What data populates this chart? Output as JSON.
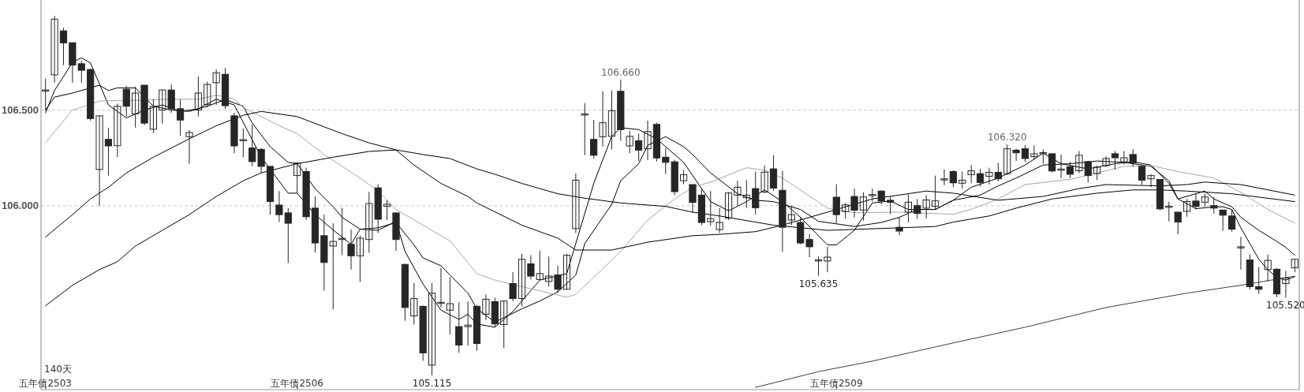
{
  "chart_data": {
    "type": "candlestick",
    "ylim": [
      105.04,
      107.075
    ],
    "grid": "y",
    "categories": [
      "五年债2503",
      null,
      null,
      null,
      null,
      null,
      null,
      null,
      null,
      null,
      null,
      null,
      null,
      null,
      null,
      null,
      null,
      null,
      null,
      null,
      null,
      null,
      null,
      null,
      null,
      null,
      null,
      null,
      "五年债2506",
      null,
      null,
      null,
      null,
      null,
      null,
      null,
      null,
      null,
      null,
      null,
      null,
      null,
      null,
      null,
      null,
      null,
      null,
      null,
      null,
      null,
      null,
      null,
      null,
      null,
      null,
      null,
      null,
      null,
      null,
      null,
      null,
      null,
      null,
      null,
      null,
      null,
      null,
      null,
      null,
      null,
      null,
      null,
      null,
      null,
      null,
      null,
      null,
      null,
      null,
      null,
      null,
      null,
      null,
      null,
      null,
      null,
      null,
      null,
      "五年债2509",
      null,
      null,
      null,
      null,
      null,
      null,
      null,
      null,
      null,
      null,
      null,
      null,
      null,
      null,
      null,
      null,
      null,
      null,
      null,
      null,
      null,
      null,
      null,
      null,
      null,
      null,
      null,
      null,
      null,
      null,
      null,
      null,
      null,
      null,
      null,
      null,
      null,
      null,
      null,
      null,
      null,
      null,
      null,
      null,
      null,
      null,
      null,
      null,
      null,
      null,
      null
    ],
    "yticks": [
      {
        "value": 106,
        "label": "106.000"
      },
      {
        "value": 106.5,
        "label": "106.500"
      }
    ],
    "annotations": [
      "140天",
      {
        "text": "106.660",
        "y": 106.66
      },
      {
        "text": "105.115",
        "y": 105.115
      },
      {
        "text": "105.635",
        "y": 105.635
      },
      {
        "text": "106.320",
        "y": 106.32
      },
      {
        "text": "105.520",
        "y": 105.52
      }
    ],
    "series": [
      {
        "color": "#262626",
        "ohlc": [
          [
            106.602,
            106.664,
            106.5,
            106.602
          ],
          [
            106.684,
            106.992,
            106.643,
            106.975
          ],
          [
            106.914,
            106.93,
            106.735,
            106.851
          ],
          [
            106.852,
            106.852,
            106.643,
            106.735
          ],
          [
            106.742,
            106.757,
            106.643,
            106.708
          ],
          [
            106.712,
            106.716,
            106.445,
            106.456
          ],
          [
            106.19,
            106.47,
            106.0,
            106.47
          ],
          [
            106.347,
            106.408,
            106.158,
            106.313
          ],
          [
            106.314,
            106.534,
            106.254,
            106.52
          ],
          [
            106.609,
            106.626,
            106.466,
            106.52
          ],
          [
            106.48,
            106.623,
            106.408,
            106.589
          ],
          [
            106.63,
            106.63,
            106.421,
            106.432
          ],
          [
            106.4,
            106.557,
            106.38,
            106.52
          ],
          [
            106.5,
            106.605,
            106.429,
            106.605
          ],
          [
            106.605,
            106.634,
            106.486,
            106.507
          ],
          [
            106.507,
            106.557,
            106.366,
            106.448
          ],
          [
            106.361,
            106.396,
            106.22,
            106.383
          ],
          [
            106.5,
            106.675,
            106.466,
            106.589
          ],
          [
            106.53,
            106.648,
            106.514,
            106.634
          ],
          [
            106.643,
            106.712,
            106.527,
            106.695
          ],
          [
            106.687,
            106.721,
            106.507,
            106.523
          ],
          [
            106.47,
            106.486,
            106.275,
            106.313
          ],
          [
            106.343,
            106.404,
            106.254,
            106.343
          ],
          [
            106.302,
            106.425,
            106.206,
            106.231
          ],
          [
            106.295,
            106.302,
            106.172,
            106.206
          ],
          [
            106.206,
            106.206,
            105.954,
            106.022
          ],
          [
            106.004,
            106.077,
            105.915,
            105.954
          ],
          [
            105.963,
            105.988,
            105.701,
            105.909
          ],
          [
            106.158,
            106.224,
            106.066,
            106.224
          ],
          [
            106.179,
            106.199,
            105.926,
            105.943
          ],
          [
            105.988,
            106.049,
            105.755,
            105.806
          ],
          [
            105.844,
            105.954,
            105.557,
            105.704
          ],
          [
            105.79,
            105.909,
            105.459,
            105.814
          ],
          [
            105.827,
            105.99,
            105.742,
            105.827
          ],
          [
            105.799,
            105.876,
            105.667,
            105.739
          ],
          [
            105.739,
            105.844,
            105.602,
            105.831
          ],
          [
            105.824,
            106.072,
            105.755,
            106.012
          ],
          [
            106.094,
            106.113,
            105.858,
            105.93
          ],
          [
            105.997,
            106.029,
            105.926,
            106.008
          ],
          [
            105.963,
            105.963,
            105.765,
            105.824
          ],
          [
            105.694,
            105.697,
            105.4,
            105.469
          ],
          [
            105.425,
            105.596,
            105.38,
            105.516
          ],
          [
            105.475,
            105.48,
            105.191,
            105.232
          ],
          [
            105.168,
            105.596,
            105.115,
            105.544
          ],
          [
            105.493,
            105.676,
            105.469,
            105.493
          ],
          [
            105.455,
            105.628,
            105.328,
            105.489
          ],
          [
            105.369,
            105.496,
            105.232,
            105.273
          ],
          [
            105.369,
            105.5,
            105.27,
            105.377
          ],
          [
            105.475,
            105.482,
            105.243,
            105.281
          ],
          [
            105.434,
            105.537,
            105.404,
            105.512
          ],
          [
            105.5,
            105.52,
            105.366,
            105.383
          ],
          [
            105.38,
            105.503,
            105.257,
            105.503
          ],
          [
            105.594,
            105.653,
            105.503,
            105.516
          ],
          [
            105.516,
            105.749,
            105.475,
            105.721
          ],
          [
            105.697,
            105.742,
            105.615,
            105.633
          ],
          [
            105.615,
            105.766,
            105.615,
            105.646
          ],
          [
            105.605,
            105.735,
            105.578,
            105.633
          ],
          [
            105.639,
            105.687,
            105.544,
            105.564
          ],
          [
            105.564,
            105.749,
            105.564,
            105.742
          ],
          [
            105.881,
            106.169,
            105.858,
            106.134
          ],
          [
            106.477,
            106.537,
            106.264,
            106.477
          ],
          [
            106.347,
            106.449,
            106.247,
            106.264
          ],
          [
            106.361,
            106.598,
            106.309,
            106.434
          ],
          [
            106.363,
            106.602,
            106.295,
            106.497
          ],
          [
            106.598,
            106.66,
            106.34,
            106.398
          ],
          [
            106.313,
            106.391,
            106.275,
            106.363
          ],
          [
            106.34,
            106.377,
            106.234,
            106.291
          ],
          [
            106.298,
            106.445,
            106.238,
            106.388
          ],
          [
            106.425,
            106.434,
            106.231,
            106.25
          ],
          [
            106.254,
            106.302,
            106.165,
            106.227
          ],
          [
            106.23,
            106.24,
            106.056,
            106.074
          ],
          [
            106.131,
            106.186,
            106.113,
            106.163
          ],
          [
            106.111,
            106.111,
            105.963,
            106.018
          ],
          [
            106.056,
            106.09,
            105.899,
            105.913
          ],
          [
            105.917,
            106.077,
            105.896,
            105.933
          ],
          [
            105.876,
            105.988,
            105.858,
            105.913
          ],
          [
            105.936,
            106.072,
            105.926,
            106.067
          ],
          [
            106.056,
            106.131,
            106.001,
            106.097
          ],
          [
            106.042,
            106.134,
            105.988,
            106.056
          ],
          [
            106.09,
            106.179,
            105.954,
            105.99
          ],
          [
            106.072,
            106.21,
            106.066,
            106.176
          ],
          [
            106.193,
            106.265,
            106.079,
            106.093
          ],
          [
            106.081,
            106.183,
            105.76,
            105.888
          ],
          [
            105.926,
            106.001,
            105.899,
            105.954
          ],
          [
            105.913,
            105.943,
            105.799,
            105.806
          ],
          [
            105.824,
            105.854,
            105.731,
            105.786
          ],
          [
            105.715,
            105.735,
            105.635,
            105.715
          ],
          [
            105.712,
            105.786,
            105.653,
            105.732
          ],
          [
            106.045,
            106.113,
            105.91,
            105.954
          ],
          [
            105.97,
            106.015,
            105.933,
            106.005
          ],
          [
            106.049,
            106.09,
            105.94,
            105.977
          ],
          [
            105.978,
            106.07,
            105.922,
            106.046
          ],
          [
            106.056,
            106.09,
            106.022,
            106.056
          ],
          [
            106.077,
            106.081,
            106.008,
            106.025
          ],
          [
            106.029,
            106.049,
            105.956,
            106.018
          ],
          [
            105.888,
            105.943,
            105.847,
            105.868
          ],
          [
            105.967,
            106.06,
            105.913,
            106.019
          ],
          [
            106.001,
            106.036,
            105.933,
            105.96
          ],
          [
            105.988,
            106.056,
            105.933,
            106.031
          ],
          [
            105.997,
            106.158,
            105.981,
            106.026
          ],
          [
            106.138,
            106.19,
            106.107,
            106.138
          ],
          [
            106.179,
            106.186,
            106.097,
            106.12
          ],
          [
            106.118,
            106.179,
            106.09,
            106.134
          ],
          [
            106.163,
            106.213,
            106.118,
            106.183
          ],
          [
            106.168,
            106.193,
            106.101,
            106.122
          ],
          [
            106.154,
            106.199,
            106.111,
            106.175
          ],
          [
            106.175,
            106.224,
            106.128,
            106.141
          ],
          [
            106.168,
            106.32,
            106.161,
            106.298
          ],
          [
            106.291,
            106.298,
            106.234,
            106.277
          ],
          [
            106.298,
            106.316,
            106.23,
            106.247
          ],
          [
            106.257,
            106.316,
            106.24,
            106.272
          ],
          [
            106.275,
            106.295,
            106.22,
            106.275
          ],
          [
            106.272,
            106.272,
            106.175,
            106.182
          ],
          [
            106.189,
            106.268,
            106.145,
            106.189
          ],
          [
            106.204,
            106.23,
            106.145,
            106.165
          ],
          [
            106.183,
            106.286,
            106.172,
            106.264
          ],
          [
            106.231,
            106.234,
            106.122,
            106.158
          ],
          [
            106.168,
            106.21,
            106.135,
            106.202
          ],
          [
            106.21,
            106.258,
            106.202,
            106.247
          ],
          [
            106.272,
            106.286,
            106.189,
            106.251
          ],
          [
            106.23,
            106.286,
            106.216,
            106.251
          ],
          [
            106.268,
            106.295,
            106.204,
            106.224
          ],
          [
            106.206,
            106.209,
            106.111,
            106.134
          ],
          [
            106.141,
            106.165,
            106.097,
            106.158
          ],
          [
            106.138,
            106.138,
            105.977,
            105.984
          ],
          [
            105.995,
            106.022,
            105.919,
            105.995
          ],
          [
            105.967,
            105.967,
            105.851,
            105.915
          ],
          [
            105.971,
            106.036,
            105.943,
            106.022
          ],
          [
            106.025,
            106.066,
            105.981,
            105.997
          ],
          [
            106.019,
            106.063,
            105.995,
            106.046
          ],
          [
            106.001,
            106.046,
            105.96,
            105.988
          ],
          [
            105.978,
            105.978,
            105.869,
            105.951
          ],
          [
            105.947,
            105.981,
            105.865,
            105.878
          ],
          [
            105.783,
            105.837,
            105.667,
            105.783
          ],
          [
            105.717,
            105.746,
            105.564,
            105.578
          ],
          [
            105.578,
            105.68,
            105.54,
            105.564
          ],
          [
            105.667,
            105.746,
            105.605,
            105.715
          ],
          [
            105.669,
            105.674,
            105.523,
            105.54
          ],
          [
            105.594,
            105.66,
            105.52,
            105.623
          ],
          [
            105.676,
            105.721,
            105.653,
            105.721
          ]
        ]
      },
      {
        "type": "line",
        "color": "#000000",
        "values": [
          106.486,
          106.602,
          null,
          106.749,
          106.773,
          106.746,
          null,
          106.527,
          null,
          106.459,
          null,
          106.5,
          null,
          106.527,
          null,
          106.493,
          null,
          106.507,
          null,
          106.557,
          null,
          106.527,
          null,
          null,
          106.254,
          null,
          null,
          106.066,
          106.066,
          null,
          105.954,
          null,
          105.874,
          null,
          105.799,
          105.878,
          null,
          105.872,
          null,
          105.919,
          105.762,
          null,
          105.592,
          null,
          105.455,
          null,
          105.407,
          105.434,
          105.383,
          null,
          105.366,
          null,
          105.448,
          null,
          null,
          105.612,
          null,
          null,
          105.646,
          null,
          null,
          106.117,
          null,
          106.363,
          106.408,
          null,
          106.398,
          null,
          106.35,
          null,
          null,
          106.227,
          null,
          null,
          106.022,
          null,
          105.974,
          null,
          106.022,
          null,
          106.083,
          null,
          106.022,
          null,
          105.94,
          null,
          105.844,
          105.796,
          105.796,
          null,
          105.872,
          null,
          106.015,
          null,
          106.025,
          null,
          105.981,
          null,
          null,
          105.981,
          null,
          106.029,
          null,
          106.097,
          null,
          null,
          106.145,
          null,
          null,
          106.213,
          null,
          106.275,
          null,
          106.22,
          null,
          null,
          106.193,
          null,
          null,
          106.22,
          null,
          106.23,
          null,
          106.213,
          null,
          106.117,
          106.036,
          null,
          105.985,
          null,
          105.995,
          105.995,
          105.981,
          105.885,
          null,
          105.721,
          105.667,
          105.626,
          105.612,
          105.63
        ]
      },
      {
        "type": "line",
        "color": "#000000",
        "values": [
          106.5,
          106.568,
          null,
          106.589,
          null,
          106.616,
          106.63,
          106.602,
          106.616,
          null,
          106.616,
          null,
          106.52,
          null,
          106.5,
          null,
          106.493,
          null,
          106.52,
          null,
          106.555,
          null,
          106.52,
          106.432,
          null,
          106.309,
          null,
          106.227,
          106.22,
          null,
          106.09,
          null,
          105.995,
          105.94,
          null,
          105.878,
          null,
          105.885,
          null,
          105.913,
          null,
          105.796,
          105.728,
          null,
          105.687,
          105.639,
          null,
          105.544,
          105.462,
          null,
          105.393,
          null,
          null,
          105.462,
          null,
          105.503,
          null,
          105.551,
          null,
          105.639,
          105.803,
          null,
          null,
          106.008,
          106.131,
          null,
          106.22,
          106.316,
          null,
          106.361,
          null,
          106.309,
          106.268,
          null,
          106.172,
          null,
          null,
          106.063,
          null,
          106.029,
          null,
          106.022,
          null,
          null,
          105.981,
          null,
          105.919,
          null,
          105.906,
          null,
          105.892,
          null,
          null,
          105.913,
          null,
          105.94,
          null,
          105.981,
          null,
          105.981,
          null,
          106.029,
          null,
          null,
          106.056,
          null,
          106.104,
          null,
          106.145,
          null,
          null,
          106.213,
          null,
          null,
          106.22,
          null,
          null,
          106.234,
          null,
          null,
          106.227,
          null,
          null,
          106.206,
          null,
          106.131,
          106.036,
          null,
          null,
          106.077,
          106.036,
          null,
          105.995,
          105.94,
          null,
          105.872,
          105.844,
          null,
          105.783,
          105.742
        ]
      },
      {
        "type": "line",
        "color": "#a6a6a6",
        "values": [
          106.329,
          null,
          null,
          106.5,
          null,
          106.53,
          106.548,
          null,
          null,
          null,
          106.551,
          null,
          null,
          null,
          106.557,
          null,
          null,
          106.557,
          null,
          106.578,
          null,
          106.557,
          106.514,
          null,
          null,
          null,
          106.418,
          null,
          106.377,
          null,
          null,
          106.268,
          null,
          null,
          null,
          106.145,
          null,
          106.077,
          null,
          105.981,
          null,
          null,
          105.899,
          null,
          null,
          105.817,
          null,
          null,
          105.646,
          null,
          105.612,
          null,
          null,
          105.578,
          null,
          null,
          null,
          null,
          105.523,
          105.537,
          null,
          105.626,
          null,
          null,
          105.762,
          null,
          null,
          105.926,
          null,
          null,
          106.036,
          null,
          106.097,
          null,
          106.124,
          null,
          null,
          null,
          106.199,
          null,
          106.186,
          null,
          106.145,
          null,
          null,
          null,
          null,
          105.988,
          null,
          null,
          105.964,
          null,
          null,
          null,
          null,
          105.967,
          null,
          null,
          null,
          null,
          null,
          105.956,
          null,
          105.981,
          null,
          null,
          106.036,
          null,
          null,
          106.111,
          null,
          null,
          null,
          null,
          106.138,
          null,
          null,
          106.172,
          null,
          null,
          106.206,
          null,
          null,
          106.21,
          null,
          null,
          106.179,
          null,
          null,
          null,
          106.145,
          null,
          null,
          106.07,
          null,
          null,
          105.981,
          null,
          null,
          105.91
        ]
      },
      {
        "type": "line",
        "color": "#000000",
        "values": [
          105.837,
          null,
          null,
          105.954,
          null,
          106.036,
          null,
          106.097,
          null,
          106.172,
          null,
          null,
          106.254,
          null,
          null,
          null,
          106.35,
          null,
          null,
          106.418,
          null,
          null,
          106.473,
          null,
          106.493,
          null,
          null,
          null,
          106.466,
          null,
          null,
          null,
          null,
          106.377,
          null,
          null,
          106.329,
          null,
          null,
          106.292,
          null,
          null,
          106.268,
          null,
          null,
          106.247,
          null,
          null,
          106.193,
          null,
          106.165,
          null,
          null,
          106.117,
          null,
          null,
          null,
          106.063,
          null,
          null,
          106.04,
          null,
          null,
          null,
          106.015,
          null,
          null,
          null,
          null,
          105.997,
          null,
          null,
          105.967,
          null,
          null,
          105.947,
          null,
          null,
          null,
          null,
          null,
          105.899,
          null,
          null,
          null,
          null,
          null,
          105.872,
          null,
          null,
          null,
          null,
          null,
          null,
          null,
          105.885,
          null,
          null,
          null,
          105.892,
          null,
          105.915,
          null,
          null,
          null,
          105.947,
          null,
          null,
          105.988,
          null,
          null,
          null,
          106.036,
          null,
          null,
          null,
          null,
          106.066,
          null,
          null,
          null,
          106.083,
          null,
          null,
          106.083,
          null,
          null,
          106.077,
          null,
          null,
          null,
          null,
          106.063,
          null,
          null,
          null,
          null,
          null,
          null,
          106.022
        ]
      },
      {
        "type": "line",
        "color": "#000000",
        "values": [
          105.478,
          null,
          null,
          105.585,
          null,
          null,
          105.667,
          null,
          105.708,
          null,
          105.79,
          null,
          null,
          105.872,
          null,
          null,
          105.954,
          null,
          null,
          106.049,
          null,
          null,
          106.131,
          null,
          106.172,
          null,
          null,
          null,
          106.22,
          null,
          null,
          null,
          106.254,
          null,
          null,
          null,
          106.284,
          null,
          null,
          106.292,
          null,
          106.213,
          null,
          null,
          106.117,
          null,
          null,
          106.049,
          106.015,
          null,
          null,
          null,
          null,
          105.899,
          null,
          null,
          null,
          105.831,
          null,
          105.769,
          null,
          null,
          null,
          105.769,
          null,
          null,
          null,
          105.81,
          null,
          null,
          null,
          null,
          105.844,
          null,
          null,
          105.851,
          null,
          null,
          null,
          105.865,
          null,
          null,
          105.899,
          null,
          null,
          null,
          null,
          105.967,
          null,
          null,
          null,
          null,
          106.036,
          null,
          null,
          null,
          null,
          null,
          106.077,
          null,
          null,
          106.066,
          null,
          null,
          null,
          null,
          106.029,
          null,
          null,
          null,
          null,
          106.049,
          null,
          null,
          null,
          106.09,
          null,
          null,
          106.111,
          null,
          null,
          null,
          null,
          null,
          106.104,
          null,
          null,
          106.111,
          null,
          106.124,
          null,
          null,
          null,
          106.111,
          null,
          null,
          null,
          null,
          null,
          106.056
        ]
      },
      {
        "type": "line",
        "color": "#404040",
        "values": [
          null,
          null,
          null,
          null,
          null,
          null,
          null,
          null,
          null,
          null,
          null,
          null,
          null,
          null,
          null,
          null,
          null,
          null,
          null,
          null,
          null,
          null,
          null,
          null,
          null,
          null,
          null,
          null,
          null,
          null,
          null,
          null,
          null,
          null,
          null,
          null,
          null,
          null,
          null,
          null,
          null,
          null,
          null,
          null,
          null,
          null,
          null,
          null,
          null,
          null,
          null,
          null,
          null,
          null,
          null,
          null,
          null,
          null,
          null,
          null,
          null,
          null,
          null,
          null,
          null,
          null,
          null,
          null,
          null,
          null,
          null,
          null,
          null,
          null,
          null,
          null,
          null,
          null,
          null,
          105.052,
          null,
          null,
          null,
          null,
          null,
          null,
          105.134,
          null,
          null,
          null,
          null,
          null,
          105.189,
          null,
          null,
          null,
          null,
          null,
          null,
          null,
          null,
          105.284,
          null,
          null,
          null,
          null,
          null,
          null,
          null,
          105.366,
          null,
          null,
          null,
          null,
          null,
          null,
          null,
          null,
          105.469,
          null,
          null,
          null,
          null,
          null,
          null,
          null,
          null,
          105.544,
          null,
          null,
          null,
          null,
          null,
          105.585,
          null,
          null,
          null,
          null,
          null,
          105.633
        ]
      }
    ]
  }
}
